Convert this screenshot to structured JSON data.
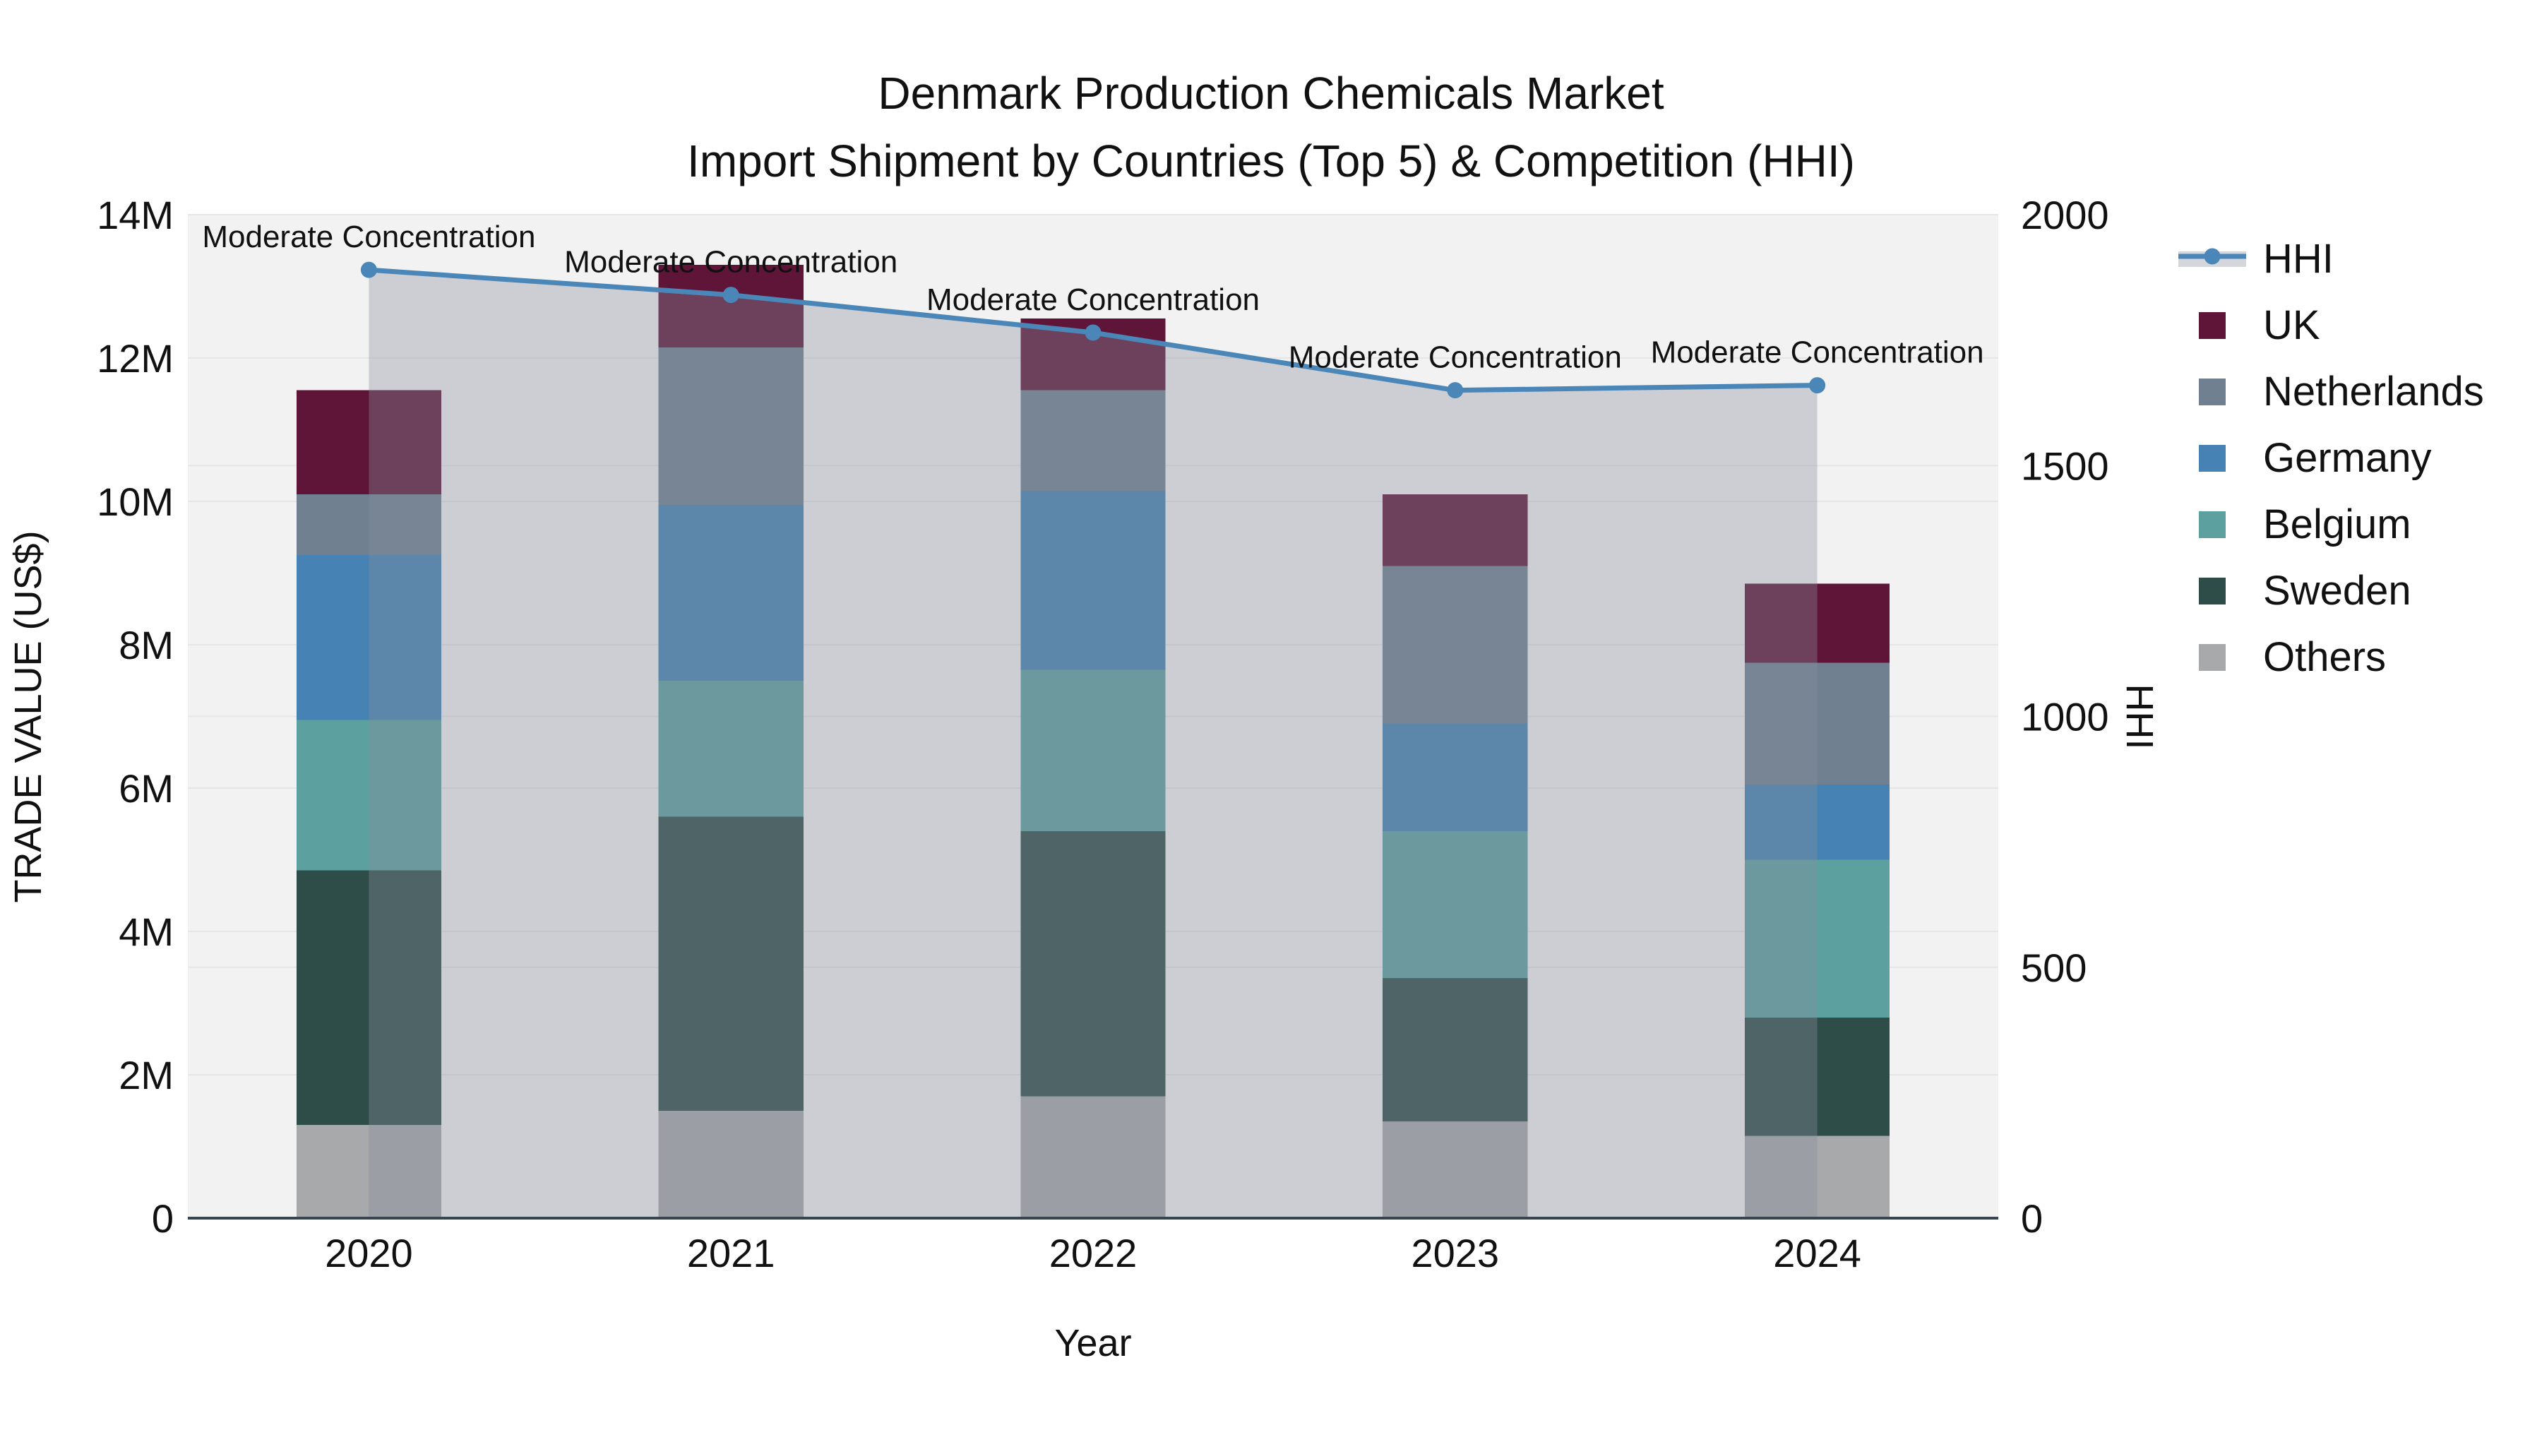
{
  "page": {
    "background": "#ffffff",
    "plot_background": "#f2f2f2",
    "grid_color": "#e6e6e6",
    "axis_line_color": "#36454f",
    "text_color": "#111111"
  },
  "chart_data": {
    "type": "combo-stacked-bar-and-line",
    "title": "Denmark Production Chemicals Market",
    "subtitle": "Import Shipment by Countries (Top 5) & Competition (HHI)",
    "xlabel": "Year",
    "ylabel_left": "TRADE VALUE (US$)",
    "ylabel_right": "HHI",
    "categories": [
      "2020",
      "2021",
      "2022",
      "2023",
      "2024"
    ],
    "y_left": {
      "min": 0,
      "max_musd": 14,
      "tick_values_m": [
        0,
        2,
        4,
        6,
        8,
        10,
        12,
        14
      ],
      "tick_labels": [
        "0",
        "2M",
        "4M",
        "6M",
        "8M",
        "10M",
        "12M",
        "14M"
      ]
    },
    "y_right": {
      "min": 0,
      "max": 2000,
      "tick_values": [
        0,
        500,
        1000,
        1500,
        2000
      ],
      "tick_labels": [
        "0",
        "500",
        "1000",
        "1500",
        "2000"
      ]
    },
    "bar_series": [
      {
        "name": "UK",
        "color": "#5f1538",
        "values_musd": [
          1.45,
          1.15,
          1.0,
          1.0,
          1.1
        ]
      },
      {
        "name": "Netherlands",
        "color": "#708090",
        "values_musd": [
          0.85,
          2.2,
          1.4,
          2.2,
          1.7
        ]
      },
      {
        "name": "Germany",
        "color": "#4682b4",
        "values_musd": [
          2.3,
          2.45,
          2.5,
          1.5,
          1.05
        ]
      },
      {
        "name": "Belgium",
        "color": "#5da0a0",
        "values_musd": [
          2.1,
          1.9,
          2.25,
          2.05,
          2.2
        ]
      },
      {
        "name": "Sweden",
        "color": "#2f4d48",
        "values_musd": [
          3.55,
          4.1,
          3.7,
          2.0,
          1.65
        ]
      },
      {
        "name": "Others",
        "color": "#a7a9ab",
        "values_musd": [
          1.3,
          1.5,
          1.7,
          1.35,
          1.15
        ]
      }
    ],
    "stack_order_bottom_to_top": [
      "Others",
      "Sweden",
      "Belgium",
      "Germany",
      "Netherlands",
      "UK"
    ],
    "line_series": {
      "name": "HHI",
      "color": "#4a86b8",
      "area_fill": "rgba(136,140,155,0.36)",
      "values": [
        1890,
        1840,
        1765,
        1650,
        1660
      ]
    },
    "annotations": [
      "Moderate Concentration",
      "Moderate Concentration",
      "Moderate Concentration",
      "Moderate Concentration",
      "Moderate Concentration"
    ],
    "legend": {
      "position": "right",
      "items": [
        "HHI",
        "UK",
        "Netherlands",
        "Germany",
        "Belgium",
        "Sweden",
        "Others"
      ]
    }
  }
}
